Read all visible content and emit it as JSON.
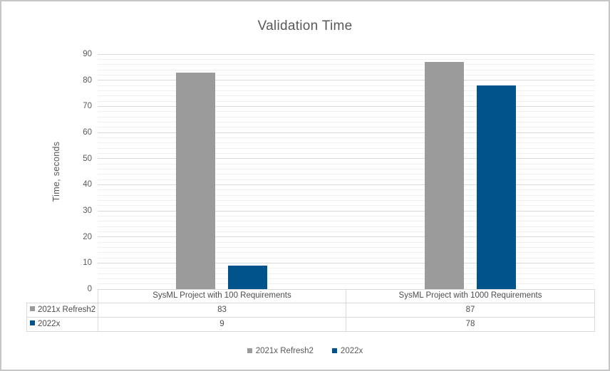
{
  "chart_data": {
    "type": "bar",
    "title": "Validation Time",
    "xlabel": "",
    "ylabel": "Time, seconds",
    "categories": [
      "SysML Project with 100 Requirements",
      "SysML Project with 1000 Requirements"
    ],
    "series": [
      {
        "name": "2021x Refresh2",
        "color": "#9b9b9b",
        "values": [
          83,
          87
        ]
      },
      {
        "name": "2022x",
        "color": "#00548b",
        "values": [
          9,
          78
        ]
      }
    ],
    "ylim": [
      0,
      90
    ],
    "y_major_step": 10,
    "y_minor_step": 2,
    "grid": true,
    "legend_position": "bottom",
    "data_table_shown": true
  },
  "colors": {
    "title_text": "#595959",
    "axis_text": "#595959",
    "major_gridline": "#d9d9d9",
    "minor_gridline": "#f0f0f0",
    "table_border": "#d9d9d9",
    "frame_border": "#c6c6c6",
    "background": "#ffffff"
  }
}
